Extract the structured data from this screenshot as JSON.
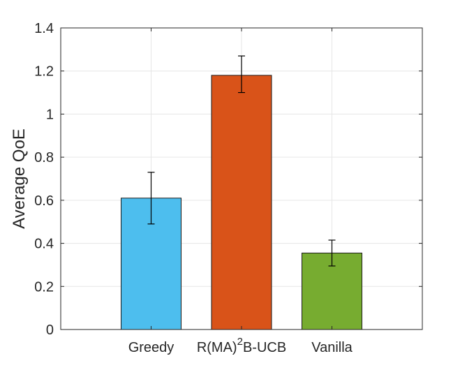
{
  "chart_data": {
    "type": "bar",
    "title": "",
    "xlabel": "",
    "ylabel": "Average QoE",
    "ylim": [
      0,
      1.4
    ],
    "yticks": [
      0,
      0.2,
      0.4,
      0.6,
      0.8,
      1,
      1.2,
      1.4
    ],
    "ytick_labels": [
      "0",
      "0.2",
      "0.4",
      "0.6",
      "0.8",
      "1",
      "1.2",
      "1.4"
    ],
    "grid": true,
    "categories": [
      "Greedy",
      "R(MA)²B-UCB",
      "Vanilla"
    ],
    "category_parts": [
      {
        "base": "Greedy",
        "sup": "",
        "rest": ""
      },
      {
        "base": "R(MA)",
        "sup": "2",
        "rest": "B-UCB"
      },
      {
        "base": "Vanilla",
        "sup": "",
        "rest": ""
      }
    ],
    "values": [
      0.61,
      1.18,
      0.355
    ],
    "error_low": [
      0.49,
      1.1,
      0.295
    ],
    "error_high": [
      0.73,
      1.27,
      0.415
    ],
    "colors": [
      "#4dbeee",
      "#d95319",
      "#77ac30"
    ]
  }
}
